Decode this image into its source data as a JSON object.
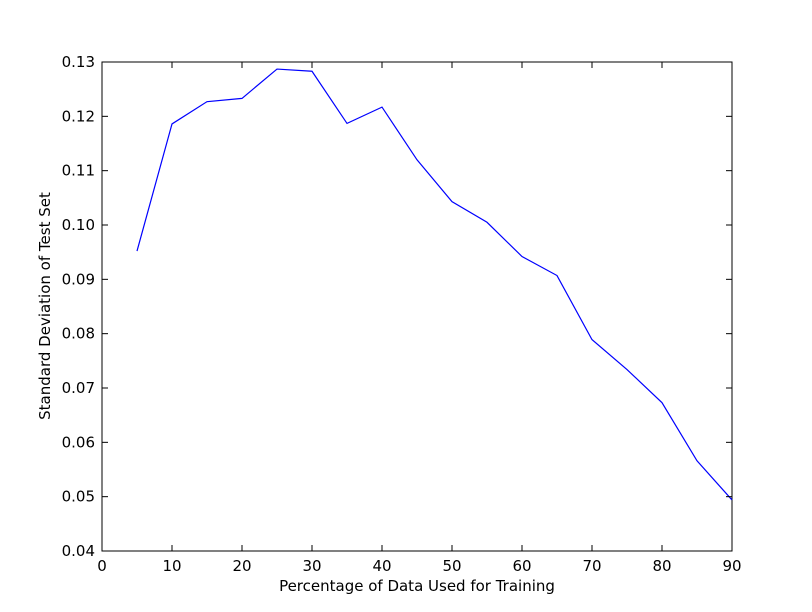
{
  "chart_data": {
    "type": "line",
    "title": "",
    "xlabel": "Percentage of Data Used for Training",
    "ylabel": "Standard Deviation of Test Set",
    "xlim": [
      0,
      90
    ],
    "ylim": [
      0.04,
      0.13
    ],
    "xticks": [
      "0",
      "10",
      "20",
      "30",
      "40",
      "50",
      "60",
      "70",
      "80",
      "90"
    ],
    "yticks": [
      "0.04",
      "0.05",
      "0.06",
      "0.07",
      "0.08",
      "0.09",
      "0.10",
      "0.11",
      "0.12",
      "0.13"
    ],
    "grid": false,
    "series": [
      {
        "color": "#0000ff",
        "x": [
          5,
          10,
          15,
          20,
          25,
          30,
          35,
          40,
          45,
          50,
          55,
          60,
          65,
          70,
          75,
          80,
          85,
          90
        ],
        "y": [
          0.0952,
          0.1186,
          0.1227,
          0.1233,
          0.1287,
          0.1283,
          0.1187,
          0.1217,
          0.112,
          0.1043,
          0.1005,
          0.0942,
          0.0907,
          0.0789,
          0.0734,
          0.0673,
          0.0566,
          0.0494
        ]
      }
    ]
  }
}
